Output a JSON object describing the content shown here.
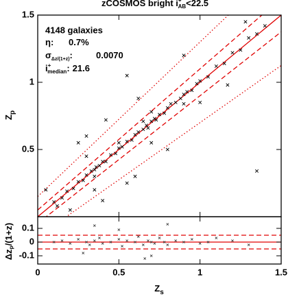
{
  "chart_data": [
    {
      "type": "scatter",
      "title": {
        "main": "zCOSMOS bright i",
        "sup": "+",
        "sub": "AB",
        "tail": "<22.5"
      },
      "y_label": {
        "main": "Z",
        "sub": "p"
      },
      "annotations": {
        "count": "4148 galaxies",
        "eta": {
          "symbol": "η:",
          "value": "0.7%"
        },
        "sigma": {
          "symbol": "σ",
          "sub": "Δz/(1+z)",
          "colon": ":",
          "value": "0.0070"
        },
        "imag": {
          "symbol": "i",
          "sup": "+",
          "sub": "median",
          "colon": ":",
          "value": "21.6"
        }
      },
      "x": [
        0.1,
        0.15,
        0.18,
        0.22,
        0.25,
        0.28,
        0.3,
        0.33,
        0.35,
        0.36,
        0.38,
        0.4,
        0.42,
        0.45,
        0.48,
        0.5,
        0.52,
        0.55,
        0.58,
        0.6,
        0.62,
        0.65,
        0.67,
        0.68,
        0.7,
        0.72,
        0.73,
        0.75,
        0.78,
        0.8,
        0.82,
        0.85,
        0.88,
        0.9,
        0.92,
        0.95,
        0.98,
        1.0,
        1.05,
        1.1,
        1.15,
        1.2,
        1.25,
        1.3,
        1.35,
        1.4,
        0.35,
        0.7,
        0.9,
        0.5,
        0.12,
        0.65,
        0.55,
        0.42,
        0.3,
        0.55,
        0.6,
        0.2,
        0.4,
        1.0,
        0.05,
        0.35,
        0.3,
        1.35,
        0.8,
        0.62,
        1.28,
        1.17,
        0.7,
        0.25,
        0.9
      ],
      "y": [
        0.11,
        0.14,
        0.19,
        0.21,
        0.26,
        0.27,
        0.31,
        0.34,
        0.35,
        0.37,
        0.38,
        0.41,
        0.41,
        0.46,
        0.47,
        0.51,
        0.52,
        0.56,
        0.57,
        0.61,
        0.63,
        0.65,
        0.68,
        0.66,
        0.71,
        0.73,
        0.72,
        0.76,
        0.77,
        0.81,
        0.84,
        0.85,
        0.88,
        0.91,
        0.93,
        0.94,
        0.99,
        1.01,
        1.04,
        1.12,
        1.14,
        1.22,
        1.24,
        1.33,
        1.36,
        1.42,
        0.3,
        0.78,
        0.84,
        0.55,
        0.08,
        0.71,
        1.05,
        0.72,
        0.6,
        0.25,
        0.3,
        0.05,
        0.12,
        0.85,
        0.2,
        0.2,
        0.45,
        0.34,
        0.5,
        0.88,
        1.45,
        0.98,
        0.55,
        0.55,
        1.2
      ],
      "xlim": [
        0,
        1.5
      ],
      "ylim": [
        0,
        1.5
      ],
      "yticks": [
        0.5,
        1,
        1.5
      ],
      "marker_color": "#000000",
      "line_color": "#e00000",
      "reference_lines": [
        {
          "offset": 0,
          "style": "solid"
        },
        {
          "offset": 0.05,
          "style": "dashed"
        },
        {
          "offset": -0.05,
          "style": "dashed"
        },
        {
          "offset": 0.15,
          "style": "dotted"
        },
        {
          "offset": -0.15,
          "style": "dotted"
        }
      ]
    },
    {
      "type": "residual",
      "x_label": {
        "main": "Z",
        "sub": "s"
      },
      "y_label": {
        "main": "Δz",
        "sub": "p",
        "tail": "/(1+z)"
      },
      "x": [
        0.1,
        0.15,
        0.2,
        0.25,
        0.3,
        0.32,
        0.35,
        0.38,
        0.4,
        0.45,
        0.5,
        0.52,
        0.55,
        0.6,
        0.62,
        0.65,
        0.68,
        0.7,
        0.72,
        0.75,
        0.78,
        0.8,
        0.85,
        0.9,
        0.95,
        1.0,
        1.05,
        1.1,
        1.2,
        1.3,
        0.35,
        0.7,
        0.5,
        0.8,
        0.28,
        0.66
      ],
      "y": [
        0.0,
        0.01,
        -0.01,
        0.02,
        0.0,
        -0.02,
        0.01,
        0.03,
        -0.01,
        0.0,
        0.02,
        -0.03,
        0.01,
        0.0,
        0.04,
        -0.02,
        0.01,
        0.0,
        -0.01,
        0.03,
        0.0,
        -0.02,
        0.01,
        0.0,
        0.02,
        -0.01,
        0.0,
        0.03,
        0.01,
        -0.02,
        0.12,
        -0.1,
        0.09,
        0.13,
        -0.08,
        -0.12
      ],
      "xlim": [
        0,
        1.5
      ],
      "ylim": [
        -0.16,
        0.185
      ],
      "xticks": [
        0,
        0.5,
        1,
        1.5
      ],
      "yticks": [
        -0.1,
        0,
        0.1
      ],
      "marker_color": "#444444",
      "line_color": "#e00000",
      "reference_lines": [
        {
          "offset": 0,
          "style": "solid"
        },
        {
          "offset": 0.05,
          "style": "dashed"
        },
        {
          "offset": -0.05,
          "style": "dashed"
        }
      ]
    }
  ]
}
